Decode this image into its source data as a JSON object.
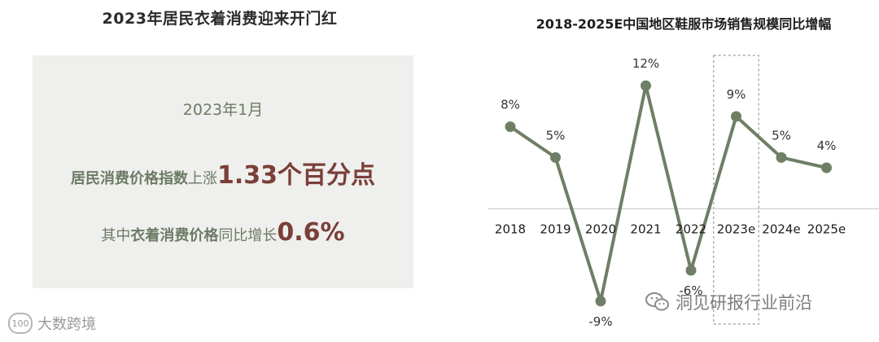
{
  "left_panel": {
    "title": "2023年居民衣着消费迎来开门红",
    "date": "2023年1月",
    "line1": {
      "bold_green": "居民消费价格指数",
      "normal_green": "上涨",
      "big_red": "1.33个百分点"
    },
    "line2": {
      "normal_green_1": "其中",
      "bold_green": "衣着消费价格",
      "normal_green_2": "同比增长",
      "big_red": "0.6%"
    }
  },
  "chart_data": {
    "type": "line",
    "title": "2018-2025E中国地区鞋服市场销售规模同比增幅",
    "categories": [
      "2018",
      "2019",
      "2020",
      "2021",
      "2022",
      "2023e",
      "2024e",
      "2025e"
    ],
    "values": [
      8,
      5,
      -9,
      12,
      -6,
      9,
      5,
      4
    ],
    "value_labels": [
      "8%",
      "5%",
      "-9%",
      "12%",
      "-6%",
      "9%",
      "5%",
      "4%"
    ],
    "ylim": [
      -11,
      14
    ],
    "grid": false,
    "highlight_category": "2023e",
    "colors": {
      "line": "#6f7f65",
      "highlight_border": "#9d9d8f"
    }
  },
  "watermarks": {
    "left": "大数跨境",
    "right": "洞见研报行业前沿"
  },
  "icons": {
    "left_logo": "100-logo-icon",
    "right_logo": "wechat-icon"
  }
}
